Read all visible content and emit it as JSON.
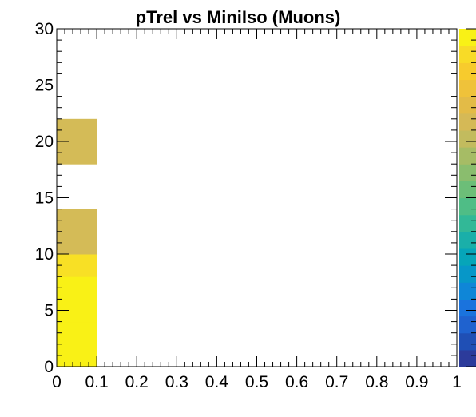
{
  "chart_data": {
    "type": "heatmap",
    "title": "pTrel vs MiniIso (Muons)",
    "xlabel": "",
    "ylabel": "",
    "xlim": [
      0,
      1
    ],
    "ylim": [
      0,
      30
    ],
    "x_ticks": [
      "0",
      "0.1",
      "0.2",
      "0.3",
      "0.4",
      "0.5",
      "0.6",
      "0.7",
      "0.8",
      "0.9",
      "1"
    ],
    "y_ticks": [
      "0",
      "5",
      "10",
      "15",
      "20",
      "25",
      "30"
    ],
    "x_bin_width": 0.1,
    "y_bin_width": 2,
    "cells": [
      {
        "x": 0.0,
        "y": 0,
        "level": 1.0
      },
      {
        "x": 0.0,
        "y": 2,
        "level": 1.0
      },
      {
        "x": 0.0,
        "y": 4,
        "level": 1.0
      },
      {
        "x": 0.0,
        "y": 6,
        "level": 1.0
      },
      {
        "x": 0.0,
        "y": 8,
        "level": 0.92
      },
      {
        "x": 0.0,
        "y": 10,
        "level": 0.75
      },
      {
        "x": 0.0,
        "y": 12,
        "level": 0.75
      },
      {
        "x": 0.0,
        "y": 18,
        "level": 0.75
      },
      {
        "x": 0.0,
        "y": 20,
        "level": 0.75
      }
    ],
    "colorbar": {
      "steps": 20,
      "colors": [
        "#2c3b9b",
        "#1f4fb5",
        "#1f62cf",
        "#1a73dd",
        "#0f86d7",
        "#0797c8",
        "#06a5b9",
        "#1aafa9",
        "#32b897",
        "#4fbd86",
        "#6cbe78",
        "#8abd6e",
        "#a6bc65",
        "#c2bb5e",
        "#d5b956",
        "#e3bb47",
        "#efc23a",
        "#f7cb2d",
        "#f8db27",
        "#f9f116"
      ]
    },
    "bin_colors": {
      "1.0": "#f9f116",
      "0.92": "#f8e025",
      "0.75": "#d4bb57"
    },
    "grid": false,
    "legend": "none"
  }
}
